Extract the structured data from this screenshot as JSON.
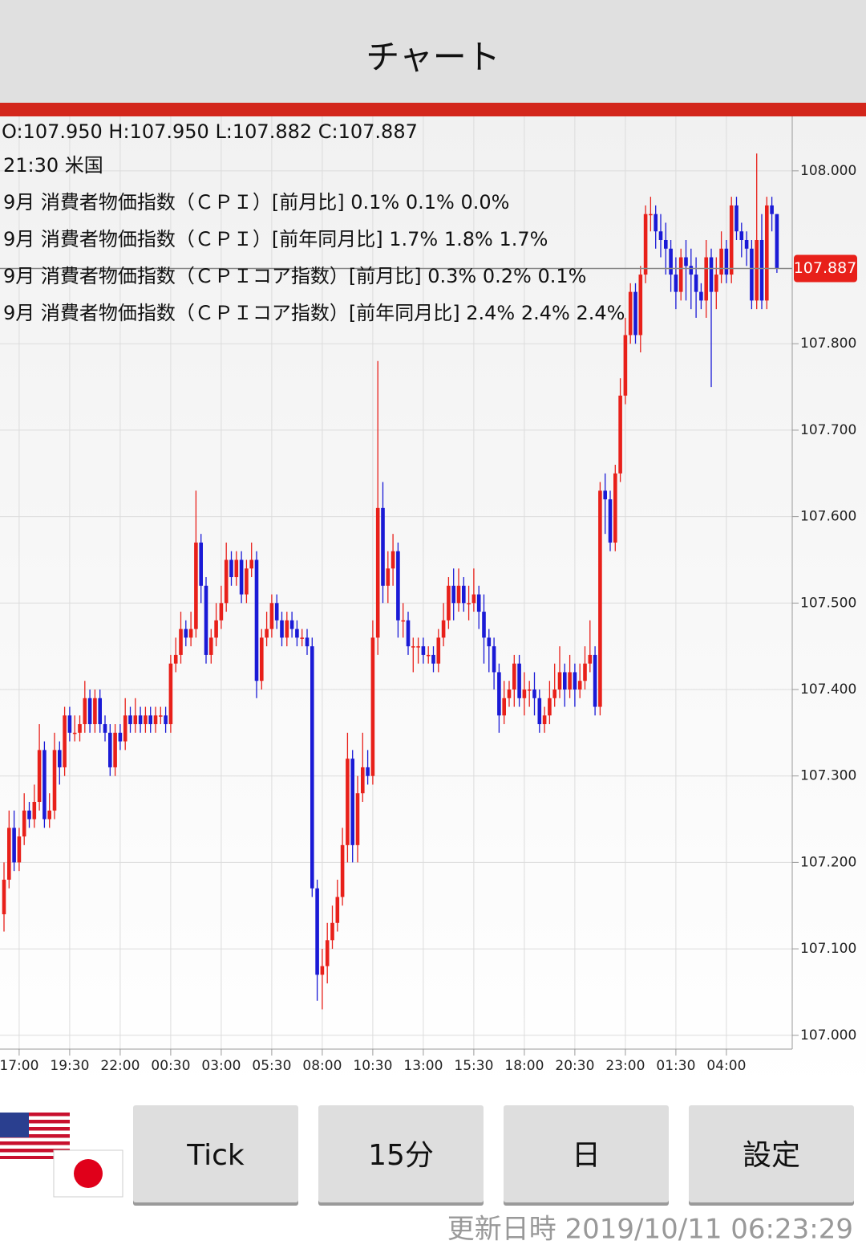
{
  "header": {
    "title": "チャート"
  },
  "info": {
    "ohlc_text": "O:107.950 H:107.950 L:107.882 C:107.887",
    "event_time": "21:30  米国",
    "indicators": [
      "9月 消費者物価指数（ＣＰＩ）[前月比]  0.1% 0.1% 0.0%",
      "9月 消費者物価指数（ＣＰＩ）[前年同月比]  1.7% 1.8% 1.7%",
      "9月 消費者物価指数（ＣＰＩコア指数）[前月比]  0.3% 0.2% 0.1%",
      "9月 消費者物価指数（ＣＰＩコア指数）[前年同月比]  2.4% 2.4% 2.4%"
    ]
  },
  "chart_data": {
    "type": "candlestick",
    "up_color": "#e8201a",
    "down_color": "#1a1ad6",
    "grid": true,
    "ylim": [
      106.984,
      108.063
    ],
    "yticks": [
      {
        "value": 107,
        "label": "107.000"
      },
      {
        "value": 107.1,
        "label": "107.100"
      },
      {
        "value": 107.2,
        "label": "107.200"
      },
      {
        "value": 107.3,
        "label": "107.300"
      },
      {
        "value": 107.4,
        "label": "107.400"
      },
      {
        "value": 107.5,
        "label": "107.500"
      },
      {
        "value": 107.6,
        "label": "107.600"
      },
      {
        "value": 107.7,
        "label": "107.700"
      },
      {
        "value": 107.8,
        "label": "107.800"
      },
      {
        "value": 108,
        "label": "108.000"
      }
    ],
    "categories": [
      null,
      null,
      null,
      "17:00",
      null,
      null,
      null,
      null,
      null,
      null,
      null,
      null,
      null,
      "19:30",
      null,
      null,
      null,
      null,
      null,
      null,
      null,
      null,
      null,
      "22:00",
      null,
      null,
      null,
      null,
      null,
      null,
      null,
      null,
      null,
      "00:30",
      null,
      null,
      null,
      null,
      null,
      null,
      null,
      null,
      null,
      "03:00",
      null,
      null,
      null,
      null,
      null,
      null,
      null,
      null,
      null,
      "05:30",
      null,
      null,
      null,
      null,
      null,
      null,
      null,
      null,
      null,
      "08:00",
      null,
      null,
      null,
      null,
      null,
      null,
      null,
      null,
      null,
      "10:30",
      null,
      null,
      null,
      null,
      null,
      null,
      null,
      null,
      null,
      "13:00",
      null,
      null,
      null,
      null,
      null,
      null,
      null,
      null,
      null,
      "15:30",
      null,
      null,
      null,
      null,
      null,
      null,
      null,
      null,
      null,
      "18:00",
      null,
      null,
      null,
      null,
      null,
      null,
      null,
      null,
      null,
      "20:30",
      null,
      null,
      null,
      null,
      null,
      null,
      null,
      null,
      null,
      "23:00",
      null,
      null,
      null,
      null,
      null,
      null,
      null,
      null,
      null,
      "01:30",
      null,
      null,
      null,
      null,
      null,
      null,
      null,
      null,
      null,
      "04:00",
      null,
      null,
      null,
      null,
      null,
      null,
      null,
      null,
      null,
      null
    ],
    "open": [
      107.14,
      107.18,
      107.24,
      107.2,
      107.23,
      107.26,
      107.25,
      107.27,
      107.33,
      107.25,
      107.26,
      107.33,
      107.31,
      107.37,
      107.35,
      107.35,
      107.36,
      107.39,
      107.36,
      107.39,
      107.36,
      107.35,
      107.31,
      107.35,
      107.34,
      107.37,
      107.36,
      107.37,
      107.36,
      107.37,
      107.36,
      107.37,
      107.37,
      107.36,
      107.43,
      107.44,
      107.47,
      107.46,
      107.47,
      107.57,
      107.52,
      107.44,
      107.46,
      107.48,
      107.5,
      107.55,
      107.53,
      107.55,
      107.51,
      107.54,
      107.55,
      107.41,
      107.46,
      107.47,
      107.5,
      107.48,
      107.46,
      107.48,
      107.47,
      107.46,
      107.46,
      107.45,
      107.17,
      107.07,
      107.08,
      107.11,
      107.13,
      107.16,
      107.22,
      107.32,
      107.22,
      107.28,
      107.31,
      107.3,
      107.46,
      107.61,
      107.52,
      107.54,
      107.56,
      107.48,
      107.48,
      107.45,
      107.45,
      107.45,
      107.44,
      107.44,
      107.43,
      107.46,
      107.48,
      107.52,
      107.5,
      107.52,
      107.5,
      107.5,
      107.51,
      107.49,
      107.46,
      107.45,
      107.42,
      107.37,
      107.39,
      107.4,
      107.43,
      107.39,
      107.4,
      107.4,
      107.39,
      107.36,
      107.37,
      107.39,
      107.4,
      107.42,
      107.4,
      107.42,
      107.4,
      107.41,
      107.43,
      107.44,
      107.38,
      107.63,
      107.62,
      107.57,
      107.65,
      107.74,
      107.81,
      107.86,
      107.81,
      107.88,
      107.95,
      107.95,
      107.93,
      107.92,
      107.91,
      107.88,
      107.86,
      107.9,
      107.89,
      107.88,
      107.86,
      107.85,
      107.9,
      107.86,
      107.88,
      107.91,
      107.88,
      107.96,
      107.93,
      107.92,
      107.91,
      107.85,
      107.92,
      107.85,
      107.96,
      107.95
    ],
    "high": [
      107.2,
      107.26,
      107.26,
      107.24,
      107.28,
      107.27,
      107.29,
      107.36,
      107.34,
      107.28,
      107.35,
      107.34,
      107.38,
      107.38,
      107.37,
      107.37,
      107.41,
      107.4,
      107.4,
      107.4,
      107.37,
      107.36,
      107.36,
      107.36,
      107.39,
      107.38,
      107.39,
      107.38,
      107.38,
      107.38,
      107.38,
      107.38,
      107.38,
      107.44,
      107.46,
      107.49,
      107.48,
      107.49,
      107.63,
      107.58,
      107.53,
      107.47,
      107.5,
      107.52,
      107.57,
      107.56,
      107.56,
      107.56,
      107.55,
      107.57,
      107.56,
      107.47,
      107.49,
      107.51,
      107.51,
      107.49,
      107.49,
      107.49,
      107.48,
      107.47,
      107.47,
      107.46,
      107.18,
      107.1,
      107.13,
      107.15,
      107.18,
      107.24,
      107.35,
      107.33,
      107.3,
      107.35,
      107.33,
      107.48,
      107.78,
      107.64,
      107.56,
      107.58,
      107.57,
      107.5,
      107.49,
      107.46,
      107.46,
      107.46,
      107.45,
      107.45,
      107.47,
      107.5,
      107.53,
      107.54,
      107.54,
      107.53,
      107.52,
      107.54,
      107.52,
      107.51,
      107.47,
      107.46,
      107.43,
      107.41,
      107.41,
      107.44,
      107.44,
      107.42,
      107.41,
      107.42,
      107.4,
      107.38,
      107.41,
      107.43,
      107.45,
      107.43,
      107.44,
      107.43,
      107.43,
      107.45,
      107.48,
      107.45,
      107.64,
      107.65,
      107.63,
      107.66,
      107.76,
      107.83,
      107.87,
      107.87,
      107.89,
      107.96,
      107.97,
      107.96,
      107.95,
      107.94,
      107.92,
      107.9,
      107.91,
      107.92,
      107.91,
      107.9,
      107.87,
      107.92,
      107.91,
      107.9,
      107.93,
      107.92,
      107.97,
      107.97,
      107.94,
      107.93,
      107.92,
      108.02,
      107.95,
      107.97,
      107.97,
      107.95
    ],
    "low": [
      107.12,
      107.17,
      107.19,
      107.19,
      107.22,
      107.24,
      107.24,
      107.26,
      107.24,
      107.24,
      107.25,
      107.29,
      107.3,
      107.34,
      107.34,
      107.34,
      107.35,
      107.35,
      107.35,
      107.35,
      107.34,
      107.3,
      107.3,
      107.33,
      107.33,
      107.35,
      107.35,
      107.35,
      107.35,
      107.35,
      107.35,
      107.36,
      107.35,
      107.35,
      107.42,
      107.43,
      107.45,
      107.45,
      107.46,
      107.5,
      107.43,
      107.43,
      107.45,
      107.47,
      107.49,
      107.52,
      107.52,
      107.5,
      107.5,
      107.53,
      107.39,
      107.4,
      107.45,
      107.46,
      107.47,
      107.45,
      107.45,
      107.46,
      107.45,
      107.45,
      107.44,
      107.16,
      107.04,
      107.03,
      107.06,
      107.1,
      107.12,
      107.15,
      107.2,
      107.2,
      107.2,
      107.27,
      107.29,
      107.29,
      107.44,
      107.5,
      107.5,
      107.52,
      107.46,
      107.46,
      107.44,
      107.42,
      107.43,
      107.43,
      107.43,
      107.42,
      107.42,
      107.45,
      107.47,
      107.48,
      107.49,
      107.49,
      107.48,
      107.49,
      107.47,
      107.43,
      107.42,
      107.4,
      107.35,
      107.36,
      107.38,
      107.38,
      107.38,
      107.37,
      107.38,
      107.37,
      107.35,
      107.35,
      107.36,
      107.38,
      107.39,
      107.38,
      107.39,
      107.38,
      107.39,
      107.4,
      107.42,
      107.37,
      107.37,
      107.58,
      107.56,
      107.56,
      107.64,
      107.73,
      107.8,
      107.8,
      107.79,
      107.87,
      107.93,
      107.91,
      107.9,
      107.88,
      107.86,
      107.84,
      107.85,
      107.85,
      107.84,
      107.83,
      107.84,
      107.83,
      107.75,
      107.84,
      107.87,
      107.87,
      107.87,
      107.92,
      107.9,
      107.89,
      107.84,
      107.84,
      107.84,
      107.84,
      107.93,
      107.882
    ],
    "close": [
      107.18,
      107.24,
      107.2,
      107.23,
      107.26,
      107.25,
      107.27,
      107.33,
      107.25,
      107.26,
      107.33,
      107.31,
      107.37,
      107.35,
      107.35,
      107.36,
      107.39,
      107.36,
      107.39,
      107.36,
      107.35,
      107.31,
      107.35,
      107.34,
      107.37,
      107.36,
      107.37,
      107.36,
      107.37,
      107.36,
      107.37,
      107.37,
      107.36,
      107.43,
      107.44,
      107.47,
      107.46,
      107.47,
      107.57,
      107.52,
      107.44,
      107.46,
      107.48,
      107.5,
      107.55,
      107.53,
      107.55,
      107.51,
      107.54,
      107.55,
      107.41,
      107.46,
      107.47,
      107.5,
      107.48,
      107.46,
      107.48,
      107.47,
      107.46,
      107.46,
      107.45,
      107.17,
      107.07,
      107.08,
      107.11,
      107.13,
      107.16,
      107.22,
      107.32,
      107.22,
      107.28,
      107.31,
      107.3,
      107.46,
      107.61,
      107.52,
      107.54,
      107.56,
      107.48,
      107.48,
      107.45,
      107.45,
      107.45,
      107.44,
      107.44,
      107.43,
      107.46,
      107.48,
      107.52,
      107.5,
      107.52,
      107.5,
      107.5,
      107.51,
      107.49,
      107.46,
      107.45,
      107.42,
      107.37,
      107.39,
      107.4,
      107.43,
      107.39,
      107.4,
      107.4,
      107.39,
      107.36,
      107.37,
      107.39,
      107.4,
      107.42,
      107.4,
      107.42,
      107.4,
      107.41,
      107.43,
      107.44,
      107.38,
      107.63,
      107.62,
      107.57,
      107.65,
      107.74,
      107.81,
      107.86,
      107.81,
      107.88,
      107.95,
      107.95,
      107.93,
      107.92,
      107.91,
      107.88,
      107.86,
      107.9,
      107.89,
      107.88,
      107.86,
      107.85,
      107.9,
      107.86,
      107.88,
      107.91,
      107.88,
      107.96,
      107.93,
      107.92,
      107.91,
      107.85,
      107.92,
      107.85,
      107.96,
      107.95,
      107.887
    ]
  },
  "buttons": [
    "Tick",
    "15分",
    "日",
    "設定"
  ],
  "footer": {
    "updated": "更新日時 2019/10/11 06:23:29"
  }
}
